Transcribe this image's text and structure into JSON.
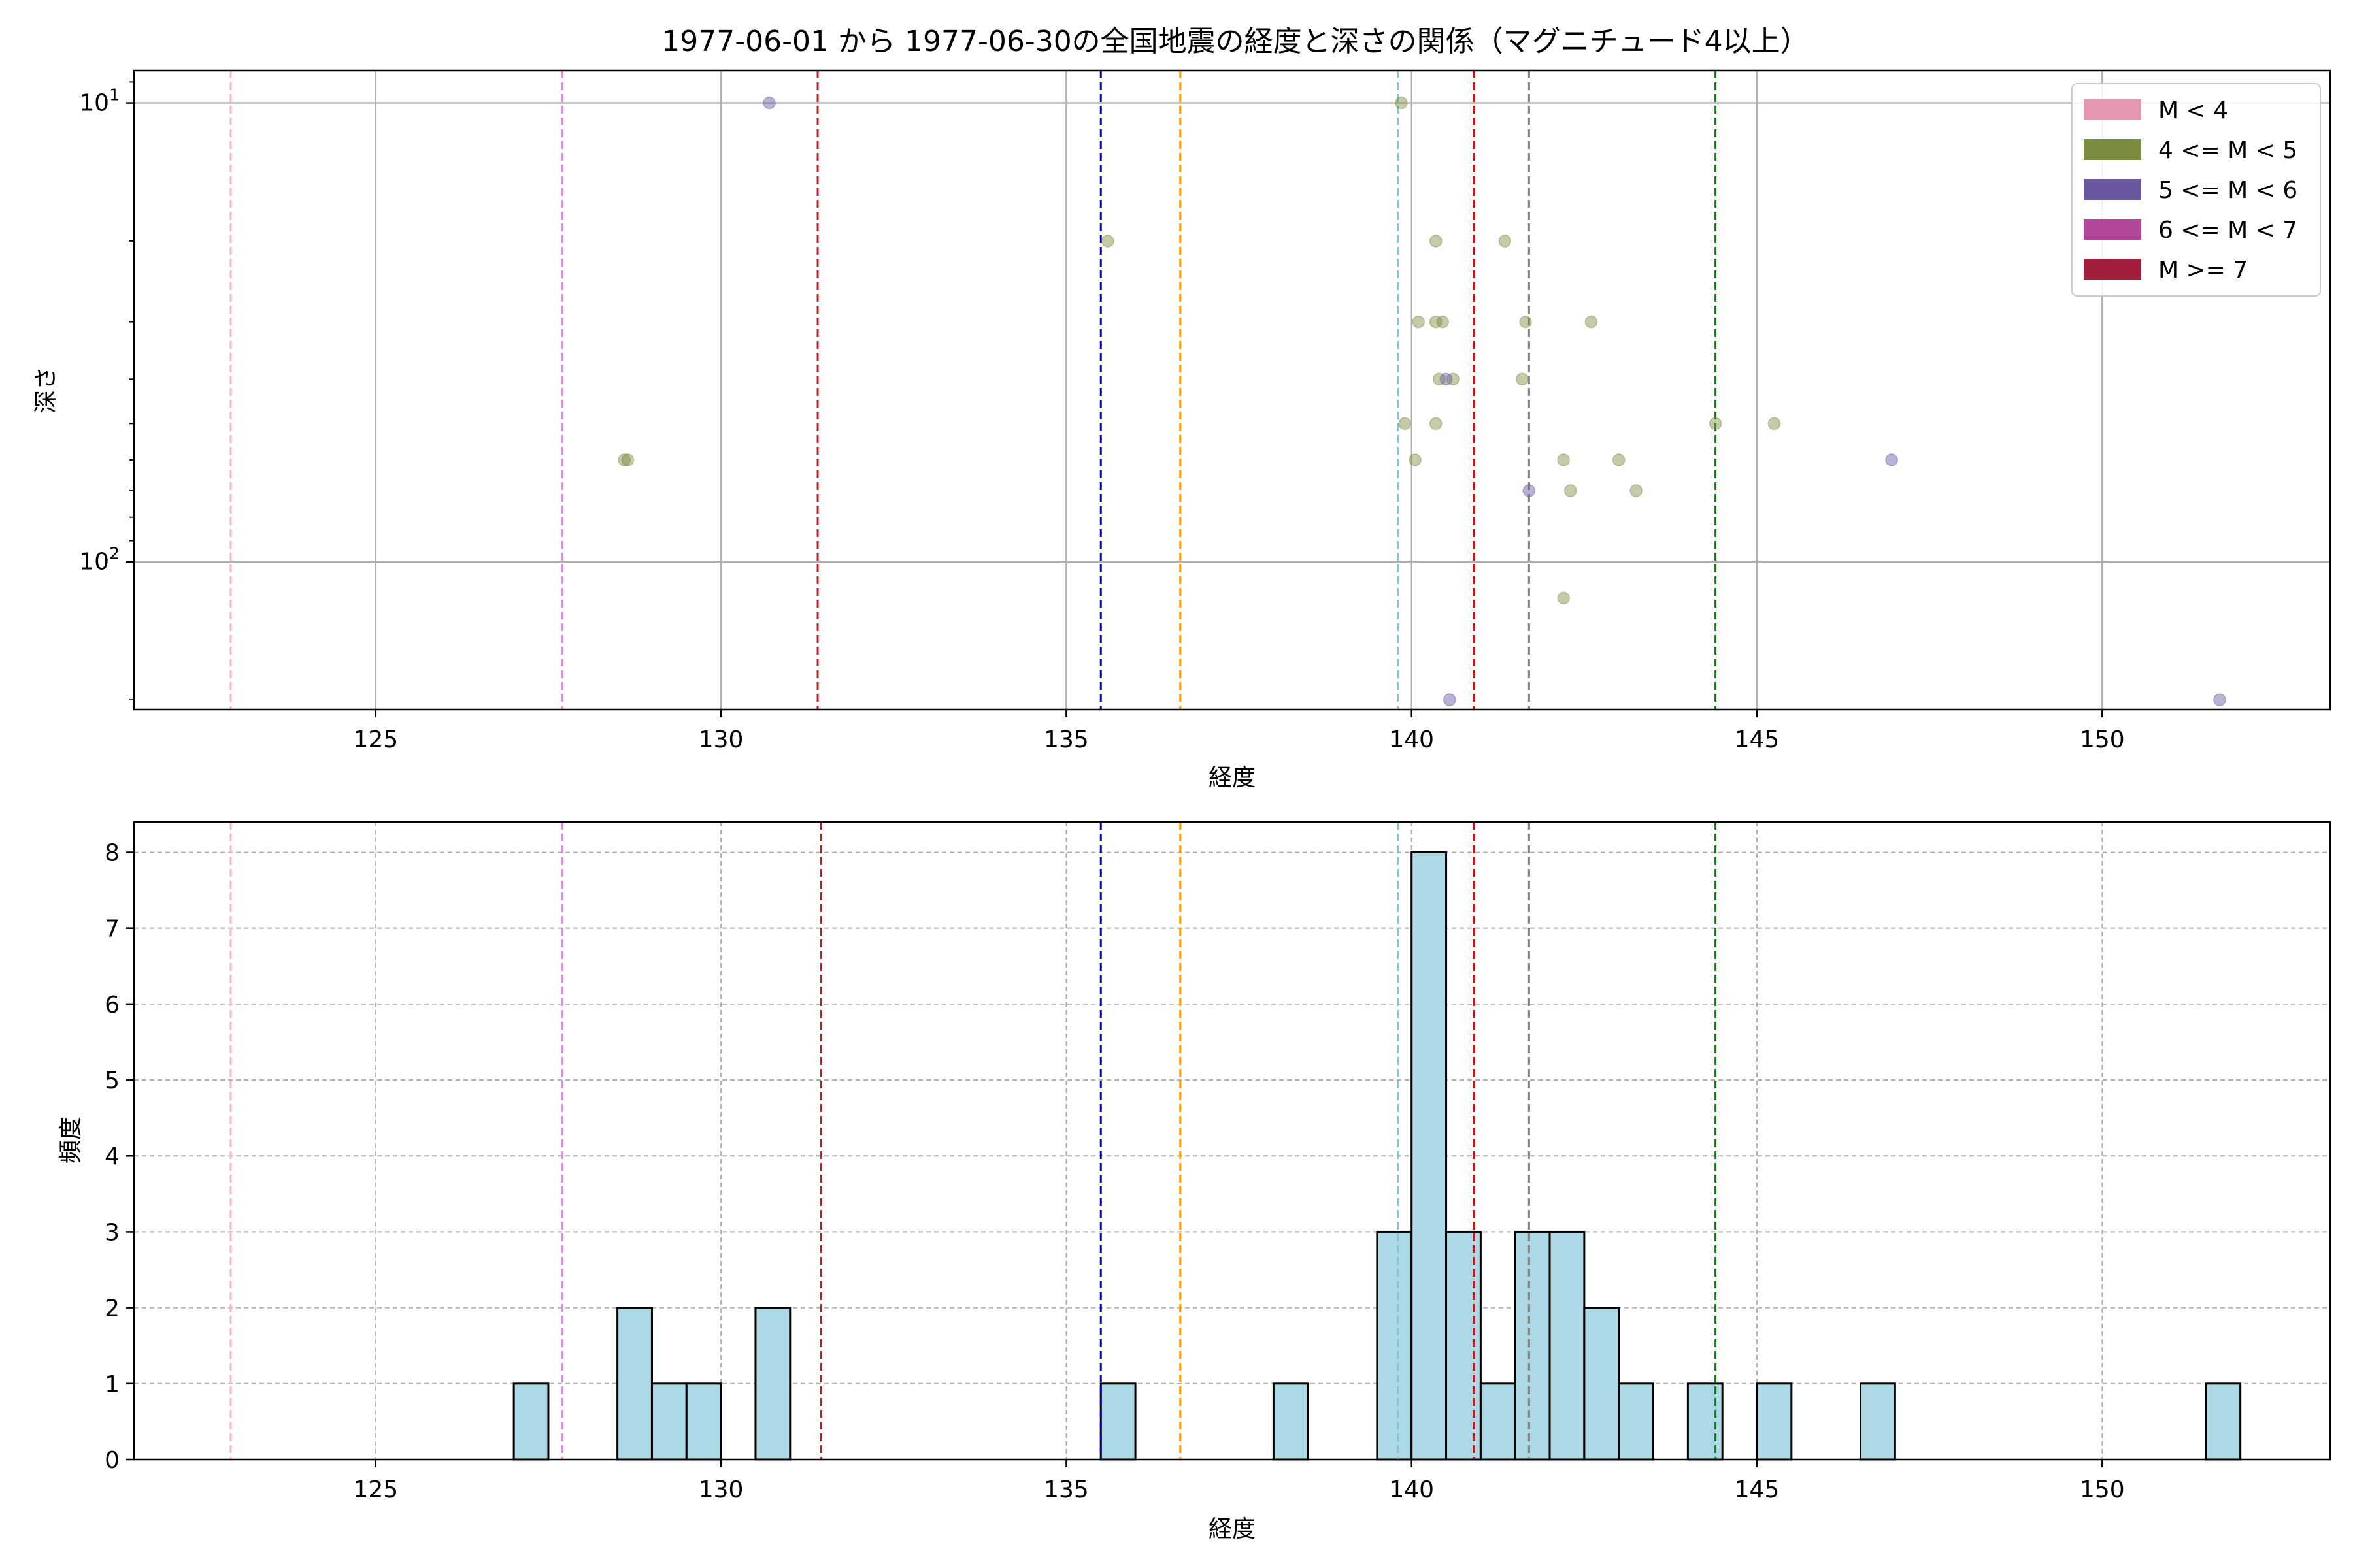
{
  "chart_data": [
    {
      "type": "scatter",
      "title": "1977-06-01 から 1977-06-30の全国地震の経度と深さの関係（マグニチュード4以上）",
      "xlabel": "経度",
      "ylabel": "深さ",
      "xlim": [
        121.5,
        153.3
      ],
      "ylim": [
        210,
        8.5
      ],
      "yscale": "log",
      "y_inverted": true,
      "xticks": [
        125,
        130,
        135,
        140,
        145,
        150
      ],
      "yticks": [
        {
          "value": 10,
          "label": "10^1"
        },
        {
          "value": 100,
          "label": "10^2"
        }
      ],
      "grid": true,
      "legend": {
        "position": "top-right",
        "entries": [
          {
            "label": "M < 4",
            "color": "#e597b2"
          },
          {
            "label": "4 <= M < 5",
            "color": "#7a8c40"
          },
          {
            "label": "5 <= M < 6",
            "color": "#6b56a0"
          },
          {
            "label": "6 <= M < 7",
            "color": "#b34799"
          },
          {
            "label": "M >= 7",
            "color": "#a11f3d"
          }
        ]
      },
      "vlines": [
        {
          "x": 122.9,
          "color": "#ffb6c1"
        },
        {
          "x": 127.7,
          "color": "#ee82ee"
        },
        {
          "x": 131.4,
          "color": "#b22222"
        },
        {
          "x": 135.5,
          "color": "#0000cd"
        },
        {
          "x": 136.65,
          "color": "#ff9900"
        },
        {
          "x": 139.8,
          "color": "#7ec8e3"
        },
        {
          "x": 140.9,
          "color": "#ff0000"
        },
        {
          "x": 141.7,
          "color": "#808080"
        },
        {
          "x": 144.4,
          "color": "#008000"
        }
      ],
      "series": [
        {
          "name": "4 <= M < 5",
          "color": "#7a8c40",
          "points": [
            {
              "x": 128.6,
              "y": 60
            },
            {
              "x": 128.65,
              "y": 60
            },
            {
              "x": 135.6,
              "y": 20
            },
            {
              "x": 139.85,
              "y": 10
            },
            {
              "x": 140.35,
              "y": 20
            },
            {
              "x": 141.35,
              "y": 20
            },
            {
              "x": 140.1,
              "y": 30
            },
            {
              "x": 140.35,
              "y": 30
            },
            {
              "x": 140.45,
              "y": 30
            },
            {
              "x": 141.65,
              "y": 30
            },
            {
              "x": 142.6,
              "y": 30
            },
            {
              "x": 140.4,
              "y": 40
            },
            {
              "x": 140.6,
              "y": 40
            },
            {
              "x": 141.6,
              "y": 40
            },
            {
              "x": 139.9,
              "y": 50
            },
            {
              "x": 140.35,
              "y": 50
            },
            {
              "x": 144.4,
              "y": 50
            },
            {
              "x": 145.25,
              "y": 50
            },
            {
              "x": 140.05,
              "y": 60
            },
            {
              "x": 142.2,
              "y": 60
            },
            {
              "x": 143.0,
              "y": 60
            },
            {
              "x": 142.3,
              "y": 70
            },
            {
              "x": 143.25,
              "y": 70
            },
            {
              "x": 142.2,
              "y": 120
            }
          ]
        },
        {
          "name": "5 <= M < 6",
          "color": "#6b56a0",
          "points": [
            {
              "x": 130.7,
              "y": 10
            },
            {
              "x": 140.5,
              "y": 40
            },
            {
              "x": 141.7,
              "y": 70
            },
            {
              "x": 146.95,
              "y": 60
            },
            {
              "x": 140.55,
              "y": 200
            },
            {
              "x": 151.7,
              "y": 200
            }
          ]
        }
      ]
    },
    {
      "type": "bar",
      "xlabel": "経度",
      "ylabel": "頻度",
      "xlim": [
        121.5,
        153.3
      ],
      "ylim": [
        0,
        8.4
      ],
      "xticks": [
        125,
        130,
        135,
        140,
        145,
        150
      ],
      "yticks": [
        0,
        1,
        2,
        3,
        4,
        5,
        6,
        7,
        8
      ],
      "grid": true,
      "bar_color": "#add8e6",
      "bin_width": 0.5,
      "bins": [
        {
          "start": 127.0,
          "count": 1
        },
        {
          "start": 128.5,
          "count": 2
        },
        {
          "start": 129.0,
          "count": 1
        },
        {
          "start": 129.5,
          "count": 1
        },
        {
          "start": 130.5,
          "count": 2
        },
        {
          "start": 135.5,
          "count": 1
        },
        {
          "start": 138.0,
          "count": 1
        },
        {
          "start": 139.5,
          "count": 3
        },
        {
          "start": 140.0,
          "count": 8
        },
        {
          "start": 140.5,
          "count": 3
        },
        {
          "start": 141.0,
          "count": 1
        },
        {
          "start": 141.5,
          "count": 3
        },
        {
          "start": 142.0,
          "count": 3
        },
        {
          "start": 142.5,
          "count": 2
        },
        {
          "start": 143.0,
          "count": 1
        },
        {
          "start": 144.0,
          "count": 1
        },
        {
          "start": 145.0,
          "count": 1
        },
        {
          "start": 146.5,
          "count": 1
        },
        {
          "start": 151.5,
          "count": 1
        }
      ],
      "vlines": [
        {
          "x": 122.9,
          "color": "#ffb6c1"
        },
        {
          "x": 127.7,
          "color": "#ee82ee"
        },
        {
          "x": 131.45,
          "color": "#b22222"
        },
        {
          "x": 135.5,
          "color": "#0000cd"
        },
        {
          "x": 136.65,
          "color": "#ff9900"
        },
        {
          "x": 139.8,
          "color": "#7ec8e3"
        },
        {
          "x": 140.9,
          "color": "#ff0000"
        },
        {
          "x": 141.7,
          "color": "#808080"
        },
        {
          "x": 144.4,
          "color": "#008000"
        }
      ]
    }
  ]
}
